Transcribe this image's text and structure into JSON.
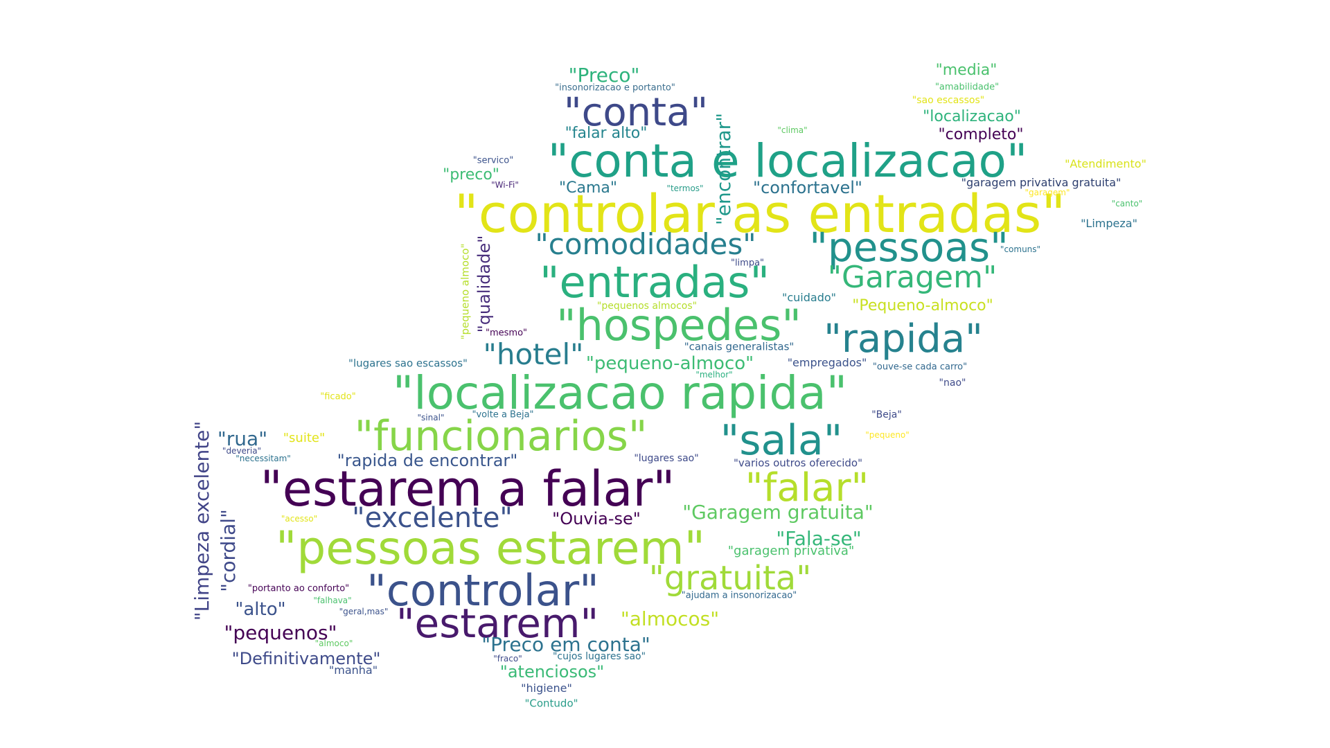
{
  "word_cloud": {
    "words": [
      {
        "text": "\"controlar as entradas\"",
        "color": "#e2e418"
      },
      {
        "text": "\"conta e localizacao\"",
        "color": "#1fa187"
      },
      {
        "text": "\"localizacao rapida\"",
        "color": "#4ac16d"
      },
      {
        "text": "\"estarem a falar\"",
        "color": "#440154"
      },
      {
        "text": "\"pessoas estarem\"",
        "color": "#a0da39"
      },
      {
        "text": "\"funcionarios\"",
        "color": "#86d549"
      },
      {
        "text": "\"hospedes\"",
        "color": "#4ac16d"
      },
      {
        "text": "\"entradas\"",
        "color": "#2ab07f"
      },
      {
        "text": "\"controlar\"",
        "color": "#3b528b"
      },
      {
        "text": "\"estarem\"",
        "color": "#481a6c"
      },
      {
        "text": "\"pessoas\"",
        "color": "#21918c"
      },
      {
        "text": "\"sala\"",
        "color": "#21918c"
      },
      {
        "text": "\"conta\"",
        "color": "#3e4989"
      },
      {
        "text": "\"falar\"",
        "color": "#b5de2b"
      },
      {
        "text": "\"rapida\"",
        "color": "#26828e"
      },
      {
        "text": "\"gratuita\"",
        "color": "#a0da39"
      },
      {
        "text": "\"Garagem\"",
        "color": "#35b779"
      },
      {
        "text": "\"comodidades\"",
        "color": "#277f8e"
      },
      {
        "text": "\"hotel\"",
        "color": "#287d8e"
      },
      {
        "text": "\"excelente\"",
        "color": "#3b528b"
      },
      {
        "text": "\"encontrar\"",
        "color": "#1f988b"
      },
      {
        "text": "\"Limpeza excelente\"",
        "color": "#414487"
      },
      {
        "text": "\"rapida de encontrar\"",
        "color": "#39568c"
      },
      {
        "text": "\"Garagem gratuita\"",
        "color": "#5ec962"
      },
      {
        "text": "\"Preco em conta\"",
        "color": "#2c728e"
      },
      {
        "text": "\"Fala-se\"",
        "color": "#35b779"
      },
      {
        "text": "\"pequeno-almoco\"",
        "color": "#3dbc74"
      },
      {
        "text": "\"almocos\"",
        "color": "#c2df23"
      },
      {
        "text": "\"pequenos\"",
        "color": "#440154"
      },
      {
        "text": "\"Preco\"",
        "color": "#2eb37c"
      },
      {
        "text": "\"Definitivamente\"",
        "color": "#3e4a89"
      },
      {
        "text": "\"atenciosos\"",
        "color": "#3aba76"
      },
      {
        "text": "\"confortavel\"",
        "color": "#2c728e"
      },
      {
        "text": "\"Ouvia-se\"",
        "color": "#440154"
      },
      {
        "text": "\"rua\"",
        "color": "#31688e"
      },
      {
        "text": "\"alto\"",
        "color": "#3b528b"
      },
      {
        "text": "\"qualidade\"",
        "color": "#472d7b"
      },
      {
        "text": "\"cordial\"",
        "color": "#3e4989"
      },
      {
        "text": "\"falar alto\"",
        "color": "#25858e"
      },
      {
        "text": "\"Cama\"",
        "color": "#2a788e"
      },
      {
        "text": "\"preco\"",
        "color": "#3dbc74"
      },
      {
        "text": "\"Pequeno-almoco\"",
        "color": "#c8e020"
      },
      {
        "text": "\"localizacao\"",
        "color": "#2eb37c"
      },
      {
        "text": "\"media\"",
        "color": "#4ac16d"
      },
      {
        "text": "\"completo\"",
        "color": "#440154"
      },
      {
        "text": "\"suite\"",
        "color": "#e2e418"
      },
      {
        "text": "\"garagem privativa\"",
        "color": "#4ac16d"
      },
      {
        "text": "\"garagem privativa gratuita\"",
        "color": "#2c3e6e"
      },
      {
        "text": "\"Atendimento\"",
        "color": "#d8e219"
      },
      {
        "text": "\"Limpeza\"",
        "color": "#2c728e"
      },
      {
        "text": "\"canais generalistas\"",
        "color": "#31688e"
      },
      {
        "text": "\"empregados\"",
        "color": "#3b528b"
      },
      {
        "text": "\"cuidado\"",
        "color": "#287d8e"
      },
      {
        "text": "\"lugares sao escassos\"",
        "color": "#2c728e"
      },
      {
        "text": "\"varios outros oferecido\"",
        "color": "#3e4a89"
      },
      {
        "text": "\"higiene\"",
        "color": "#3b528b"
      },
      {
        "text": "\"manha\"",
        "color": "#3b528b"
      },
      {
        "text": "\"Contudo\"",
        "color": "#2a9d8a"
      },
      {
        "text": "\"pequeno almoco\"",
        "color": "#b5de2b"
      },
      {
        "text": "\"mesmo\"",
        "color": "#440154"
      },
      {
        "text": "\"insonorizacao e portanto\"",
        "color": "#3b6e8e"
      },
      {
        "text": "\"amabilidade\"",
        "color": "#4ac16d"
      },
      {
        "text": "\"sao escassos\"",
        "color": "#e2e418"
      },
      {
        "text": "\"clima\"",
        "color": "#5ec962"
      },
      {
        "text": "\"servico\"",
        "color": "#3b528b"
      },
      {
        "text": "\"Wi-Fi\"",
        "color": "#482677"
      },
      {
        "text": "\"termos\"",
        "color": "#2a9d8a"
      },
      {
        "text": "\"garagem\"",
        "color": "#fde725"
      },
      {
        "text": "\"canto\"",
        "color": "#4ac16d"
      },
      {
        "text": "\"comuns\"",
        "color": "#2c728e"
      },
      {
        "text": "\"limpa\"",
        "color": "#3e4a89"
      },
      {
        "text": "\"pequenos almocos\"",
        "color": "#b5de2b"
      },
      {
        "text": "\"melhor\"",
        "color": "#2ab07f"
      },
      {
        "text": "\"ouve-se cada carro\"",
        "color": "#31688e"
      },
      {
        "text": "\"nao\"",
        "color": "#3e4a89"
      },
      {
        "text": "\"ficado\"",
        "color": "#e2e418"
      },
      {
        "text": "\"sinal\"",
        "color": "#3b528b"
      },
      {
        "text": "\"volte a Beja\"",
        "color": "#2c728e"
      },
      {
        "text": "\"Beja\"",
        "color": "#3e4a89"
      },
      {
        "text": "\"pequeno\"",
        "color": "#fde725"
      },
      {
        "text": "\"deveria\"",
        "color": "#3e4a89"
      },
      {
        "text": "\"necessitam\"",
        "color": "#2c728e"
      },
      {
        "text": "\"lugares sao\"",
        "color": "#3e4a89"
      },
      {
        "text": "\"acesso\"",
        "color": "#e2e418"
      },
      {
        "text": "\"portanto ao conforto\"",
        "color": "#440154"
      },
      {
        "text": "\"falhava\"",
        "color": "#4ac16d"
      },
      {
        "text": "\"geral,mas\"",
        "color": "#3b528b"
      },
      {
        "text": "\"almoco\"",
        "color": "#5ec962"
      },
      {
        "text": "\"ajudam a insonorizacao\"",
        "color": "#31688e"
      },
      {
        "text": "\"fraco\"",
        "color": "#3e4a89"
      },
      {
        "text": "\"cujos lugares sao\"",
        "color": "#2c728e"
      }
    ]
  }
}
